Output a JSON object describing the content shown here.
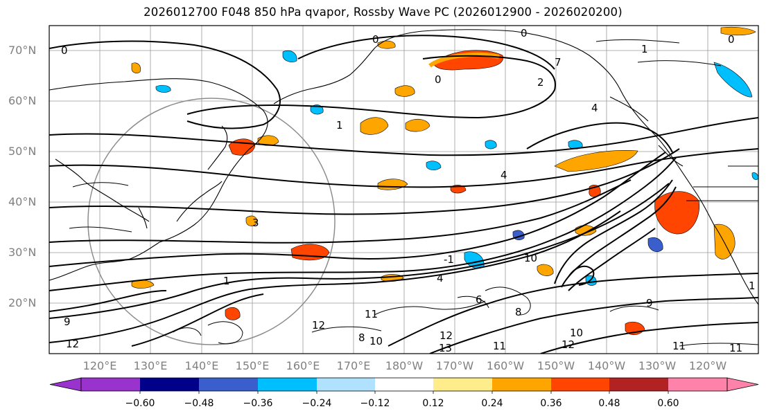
{
  "title": "2026012700 F048 850 hPa qvapor, Rossby Wave PC (2026012900 - 2026020200)",
  "latitude_labels": [
    "70°N",
    "60°N",
    "50°N",
    "40°N",
    "30°N",
    "20°N"
  ],
  "longitude_labels": [
    "120°E",
    "130°E",
    "140°E",
    "150°E",
    "160°E",
    "170°E",
    "180°W",
    "170°W",
    "160°W",
    "150°W",
    "140°W",
    "130°W",
    "120°W"
  ],
  "colorbar": {
    "ticks": [
      "−0.60",
      "−0.48",
      "−0.36",
      "−0.24",
      "−0.12",
      "0.12",
      "0.24",
      "0.36",
      "0.48",
      "0.60"
    ],
    "colors": [
      "#9a32cd",
      "#00008b",
      "#3a5fcd",
      "#00bfff",
      "#b0e2ff",
      "#ffffff",
      "#ffec8b",
      "#ffa500",
      "#ff4500",
      "#b22222",
      "#ff82ab"
    ]
  },
  "contour_labels": [
    "0",
    "0",
    "0",
    "0",
    "1",
    "2",
    "4",
    "4",
    "7",
    "0",
    "1",
    "-1",
    "3",
    "4",
    "10",
    "11",
    "11",
    "12",
    "12",
    "13",
    "12",
    "11",
    "11",
    "9",
    "9",
    "10",
    "10",
    "6",
    "8",
    "12",
    "8",
    "1",
    "1"
  ]
}
